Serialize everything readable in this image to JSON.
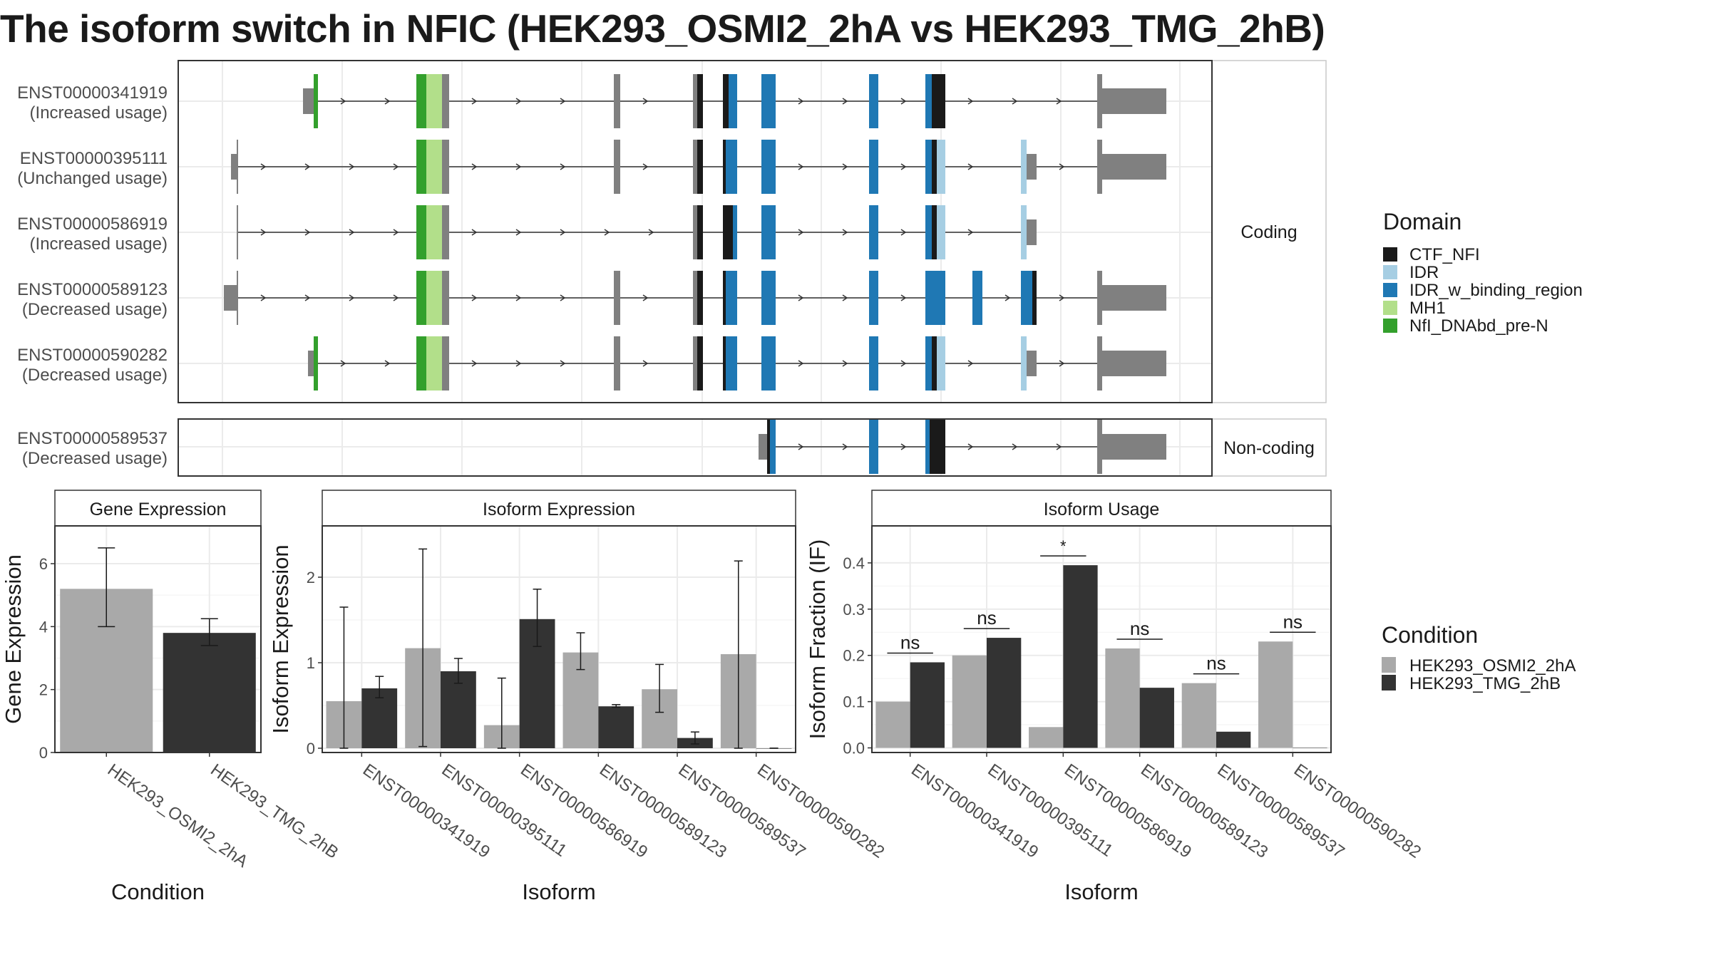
{
  "title": "The isoform switch in NFIC (HEK293_OSMI2_2hA vs HEK293_TMG_2hB)",
  "colors": {
    "CTF_NFI": "#1a1a1a",
    "IDR": "#a6cee3",
    "IDR_w_binding_region": "#1f78b4",
    "MH1": "#b2df8a",
    "NfI_DNAbd_pre-N": "#33a02c",
    "utr": "#808080",
    "cond1": "#a9a9a9",
    "cond2": "#333333"
  },
  "transcripts": {
    "facets": [
      {
        "label": "Coding",
        "rows": [
          {
            "id": "ENST00000341919",
            "note": "(Increased usage)"
          },
          {
            "id": "ENST00000395111",
            "note": "(Unchanged usage)"
          },
          {
            "id": "ENST00000586919",
            "note": "(Increased usage)"
          },
          {
            "id": "ENST00000589123",
            "note": "(Decreased usage)"
          },
          {
            "id": "ENST00000590282",
            "note": "(Decreased usage)"
          }
        ]
      },
      {
        "label": "Non-coding",
        "rows": [
          {
            "id": "ENST00000589537",
            "note": "(Decreased usage)"
          }
        ]
      }
    ]
  },
  "legends": {
    "domain": {
      "title": "Domain",
      "items": [
        "CTF_NFI",
        "IDR",
        "IDR_w_binding_region",
        "MH1",
        "NfI_DNAbd_pre-N"
      ]
    },
    "condition": {
      "title": "Condition",
      "items": [
        "HEK293_OSMI2_2hA",
        "HEK293_TMG_2hB"
      ]
    }
  },
  "chart_data": [
    {
      "type": "bar",
      "title": "Gene Expression",
      "xlabel": "Condition",
      "ylabel": "Gene Expression",
      "categories": [
        "HEK293_OSMI2_2hA",
        "HEK293_TMG_2hB"
      ],
      "values": [
        5.2,
        3.8
      ],
      "error_low": [
        4.0,
        3.4
      ],
      "error_high": [
        6.5,
        4.25
      ],
      "ylim": [
        0,
        7.2
      ],
      "yticks": [
        0,
        2,
        4,
        6
      ]
    },
    {
      "type": "bar",
      "title": "Isoform Expression",
      "xlabel": "Isoform",
      "ylabel": "Isoform Expression",
      "categories": [
        "ENST00000341919",
        "ENST00000395111",
        "ENST00000586919",
        "ENST00000589123",
        "ENST00000589537",
        "ENST00000590282"
      ],
      "series": [
        {
          "name": "HEK293_OSMI2_2hA",
          "values": [
            0.55,
            1.17,
            0.27,
            1.12,
            0.69,
            1.1
          ],
          "error_low": [
            0.0,
            0.02,
            0.0,
            0.92,
            0.42,
            0.0
          ],
          "error_high": [
            1.65,
            2.33,
            0.82,
            1.35,
            0.98,
            2.19
          ]
        },
        {
          "name": "HEK293_TMG_2hB",
          "values": [
            0.7,
            0.9,
            1.51,
            0.49,
            0.12,
            0.0
          ],
          "error_low": [
            0.59,
            0.76,
            1.19,
            0.48,
            0.05,
            0.0
          ],
          "error_high": [
            0.84,
            1.05,
            1.86,
            0.51,
            0.19,
            0.0
          ]
        }
      ],
      "ylim": [
        -0.05,
        2.6
      ],
      "yticks": [
        0,
        1,
        2
      ]
    },
    {
      "type": "bar",
      "title": "Isoform Usage",
      "xlabel": "Isoform",
      "ylabel": "Isoform Fraction (IF)",
      "categories": [
        "ENST00000341919",
        "ENST00000395111",
        "ENST00000586919",
        "ENST00000589123",
        "ENST00000589537",
        "ENST00000590282"
      ],
      "series": [
        {
          "name": "HEK293_OSMI2_2hA",
          "values": [
            0.1,
            0.2,
            0.045,
            0.215,
            0.14,
            0.23
          ]
        },
        {
          "name": "HEK293_TMG_2hB",
          "values": [
            0.185,
            0.238,
            0.395,
            0.13,
            0.035,
            0.0
          ]
        }
      ],
      "significance": [
        "ns",
        "ns",
        "*",
        "ns",
        "ns",
        "ns"
      ],
      "ylim": [
        -0.01,
        0.48
      ],
      "yticks": [
        0.0,
        0.1,
        0.2,
        0.3,
        0.4
      ],
      "ytick_labels": [
        "0.0",
        "0.1",
        "0.2",
        "0.3",
        "0.4"
      ]
    }
  ]
}
